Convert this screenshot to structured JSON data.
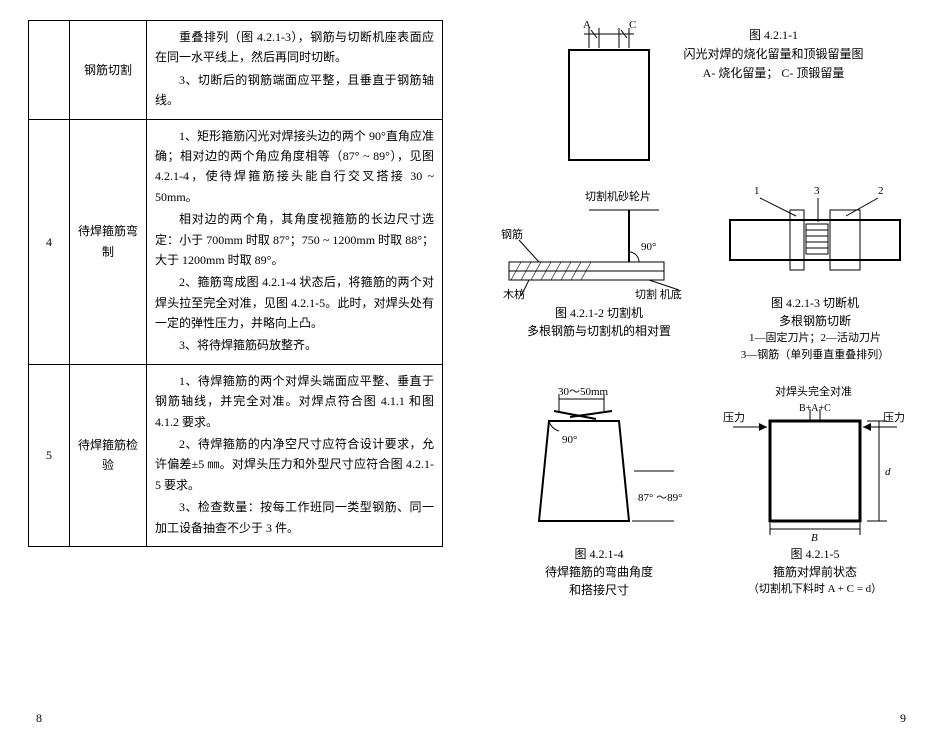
{
  "left_page_num": "8",
  "right_page_num": "9",
  "table": {
    "rows": [
      {
        "idx": "",
        "name": "钢筋切割",
        "desc_paras": [
          "重叠排列（图 4.2.1-3），钢筋与切断机座表面应在同一水平线上，然后再同时切断。",
          "3、切断后的钢筋端面应平整，且垂直于钢筋轴线。"
        ]
      },
      {
        "idx": "4",
        "name": "待焊箍筋弯制",
        "desc_paras": [
          "1、矩形箍筋闪光对焊接头边的两个 90°直角应准确；相对边的两个角应角度相等（87° ~ 89°），见图 4.2.1-4，使待焊箍筋接头能自行交叉搭接 30 ~ 50mm。",
          "相对边的两个角，其角度视箍筋的长边尺寸选定：小于 700mm 时取 87°；750 ~ 1200mm 时取 88°；大于 1200mm 时取 89°。",
          "2、箍筋弯成图 4.2.1-4 状态后，将箍筋的两个对焊头拉至完全对准，见图 4.2.1-5。此时，对焊头处有一定的弹性压力，并略向上凸。",
          "3、将待焊箍筋码放整齐。"
        ]
      },
      {
        "idx": "5",
        "name": "待焊箍筋检验",
        "desc_paras": [
          "1、待焊箍筋的两个对焊头端面应平整、垂直于钢筋轴线，并完全对准。对焊点符合图 4.1.1 和图 4.1.2 要求。",
          "2、待焊箍筋的内净空尺寸应符合设计要求，允许偏差±5 ㎜。对焊头压力和外型尺寸应符合图 4.2.1-5 要求。",
          "3、检查数量：按每工作班同一类型钢筋、同一加工设备抽查不少于 3 件。"
        ]
      }
    ]
  },
  "fig1": {
    "label_A": "A",
    "label_C": "C",
    "title": "图 4.2.1-1",
    "sub1": "闪光对焊的烧化留量和顶锻留量图",
    "sub2": "A- 烧化留量； C- 顶锻留量"
  },
  "fig2": {
    "lbl_wheel": "切割机砂轮片",
    "lbl_bar": "钢筋",
    "lbl_90": "90°",
    "lbl_wood": "木枋",
    "lbl_base": "切割 机底",
    "title": "图 4.2.1-2  切割机",
    "sub": "多根钢筋与切割机的相对置"
  },
  "fig3": {
    "lbl_1": "1",
    "lbl_2": "2",
    "lbl_3": "3",
    "title": "图 4.2.1-3  切断机",
    "sub1": "多根钢筋切断",
    "sub2": "1—固定刀片；2—活动刀片",
    "sub3": "3—钢筋（单列垂直重叠排列）"
  },
  "fig4": {
    "lbl_top": "30～50mm",
    "lbl_90": "90°",
    "lbl_side": "87° ～89°",
    "title": "图 4.2.1-4",
    "sub1": "待焊箍筋的弯曲角度",
    "sub2": "和搭接尺寸"
  },
  "fig5": {
    "lbl_top": "对焊头完全对准",
    "lbl_bac": "B+A+C",
    "lbl_pL": "压力",
    "lbl_pR": "压力",
    "lbl_d": "d",
    "lbl_B": "B",
    "title": "图 4.2.1-5",
    "sub1": "箍筋对焊前状态",
    "sub2": "（切割机下料时 A + C = d）"
  }
}
